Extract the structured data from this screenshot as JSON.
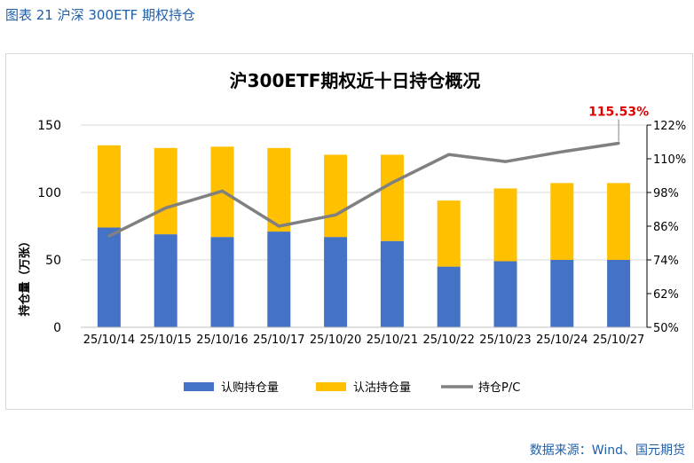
{
  "figure_title": "图表 21 沪深 300ETF 期权持仓",
  "source": "数据来源：Wind、国元期货",
  "colors": {
    "call": "#4472c4",
    "put": "#ffc000",
    "pc_line": "#808080",
    "label_red": "#e00000",
    "title_blue": "#1f5fa8"
  },
  "chart_data": {
    "type": "bar",
    "title": "沪300ETF期权近十日持仓概况",
    "ylabel": "持仓量（万张）",
    "ylim": [
      0,
      150
    ],
    "yticks": [
      "0",
      "50",
      "100",
      "150"
    ],
    "y2lim": [
      50,
      122
    ],
    "y2ticks": [
      "50%",
      "62%",
      "74%",
      "86%",
      "98%",
      "110%",
      "122%"
    ],
    "categories": [
      "25/10/14",
      "25/10/15",
      "25/10/16",
      "25/10/17",
      "25/10/20",
      "25/10/21",
      "25/10/22",
      "25/10/23",
      "25/10/24",
      "25/10/27"
    ],
    "series": [
      {
        "name": "认购持仓量",
        "type": "bar",
        "values": [
          74,
          69,
          67,
          71,
          67,
          64,
          45,
          49,
          50,
          50
        ]
      },
      {
        "name": "认沽持仓量",
        "type": "bar",
        "values": [
          61,
          64,
          67,
          62,
          61,
          64,
          49,
          54,
          57,
          57
        ]
      },
      {
        "name": "持仓P/C",
        "type": "line",
        "axis": "right",
        "values": [
          82.5,
          92.5,
          98.5,
          86.0,
          90.0,
          101.5,
          111.5,
          109.0,
          112.5,
          115.53
        ]
      }
    ],
    "annotation": "115.53%",
    "legend": [
      "认购持仓量",
      "认沽持仓量",
      "持仓P/C"
    ]
  }
}
